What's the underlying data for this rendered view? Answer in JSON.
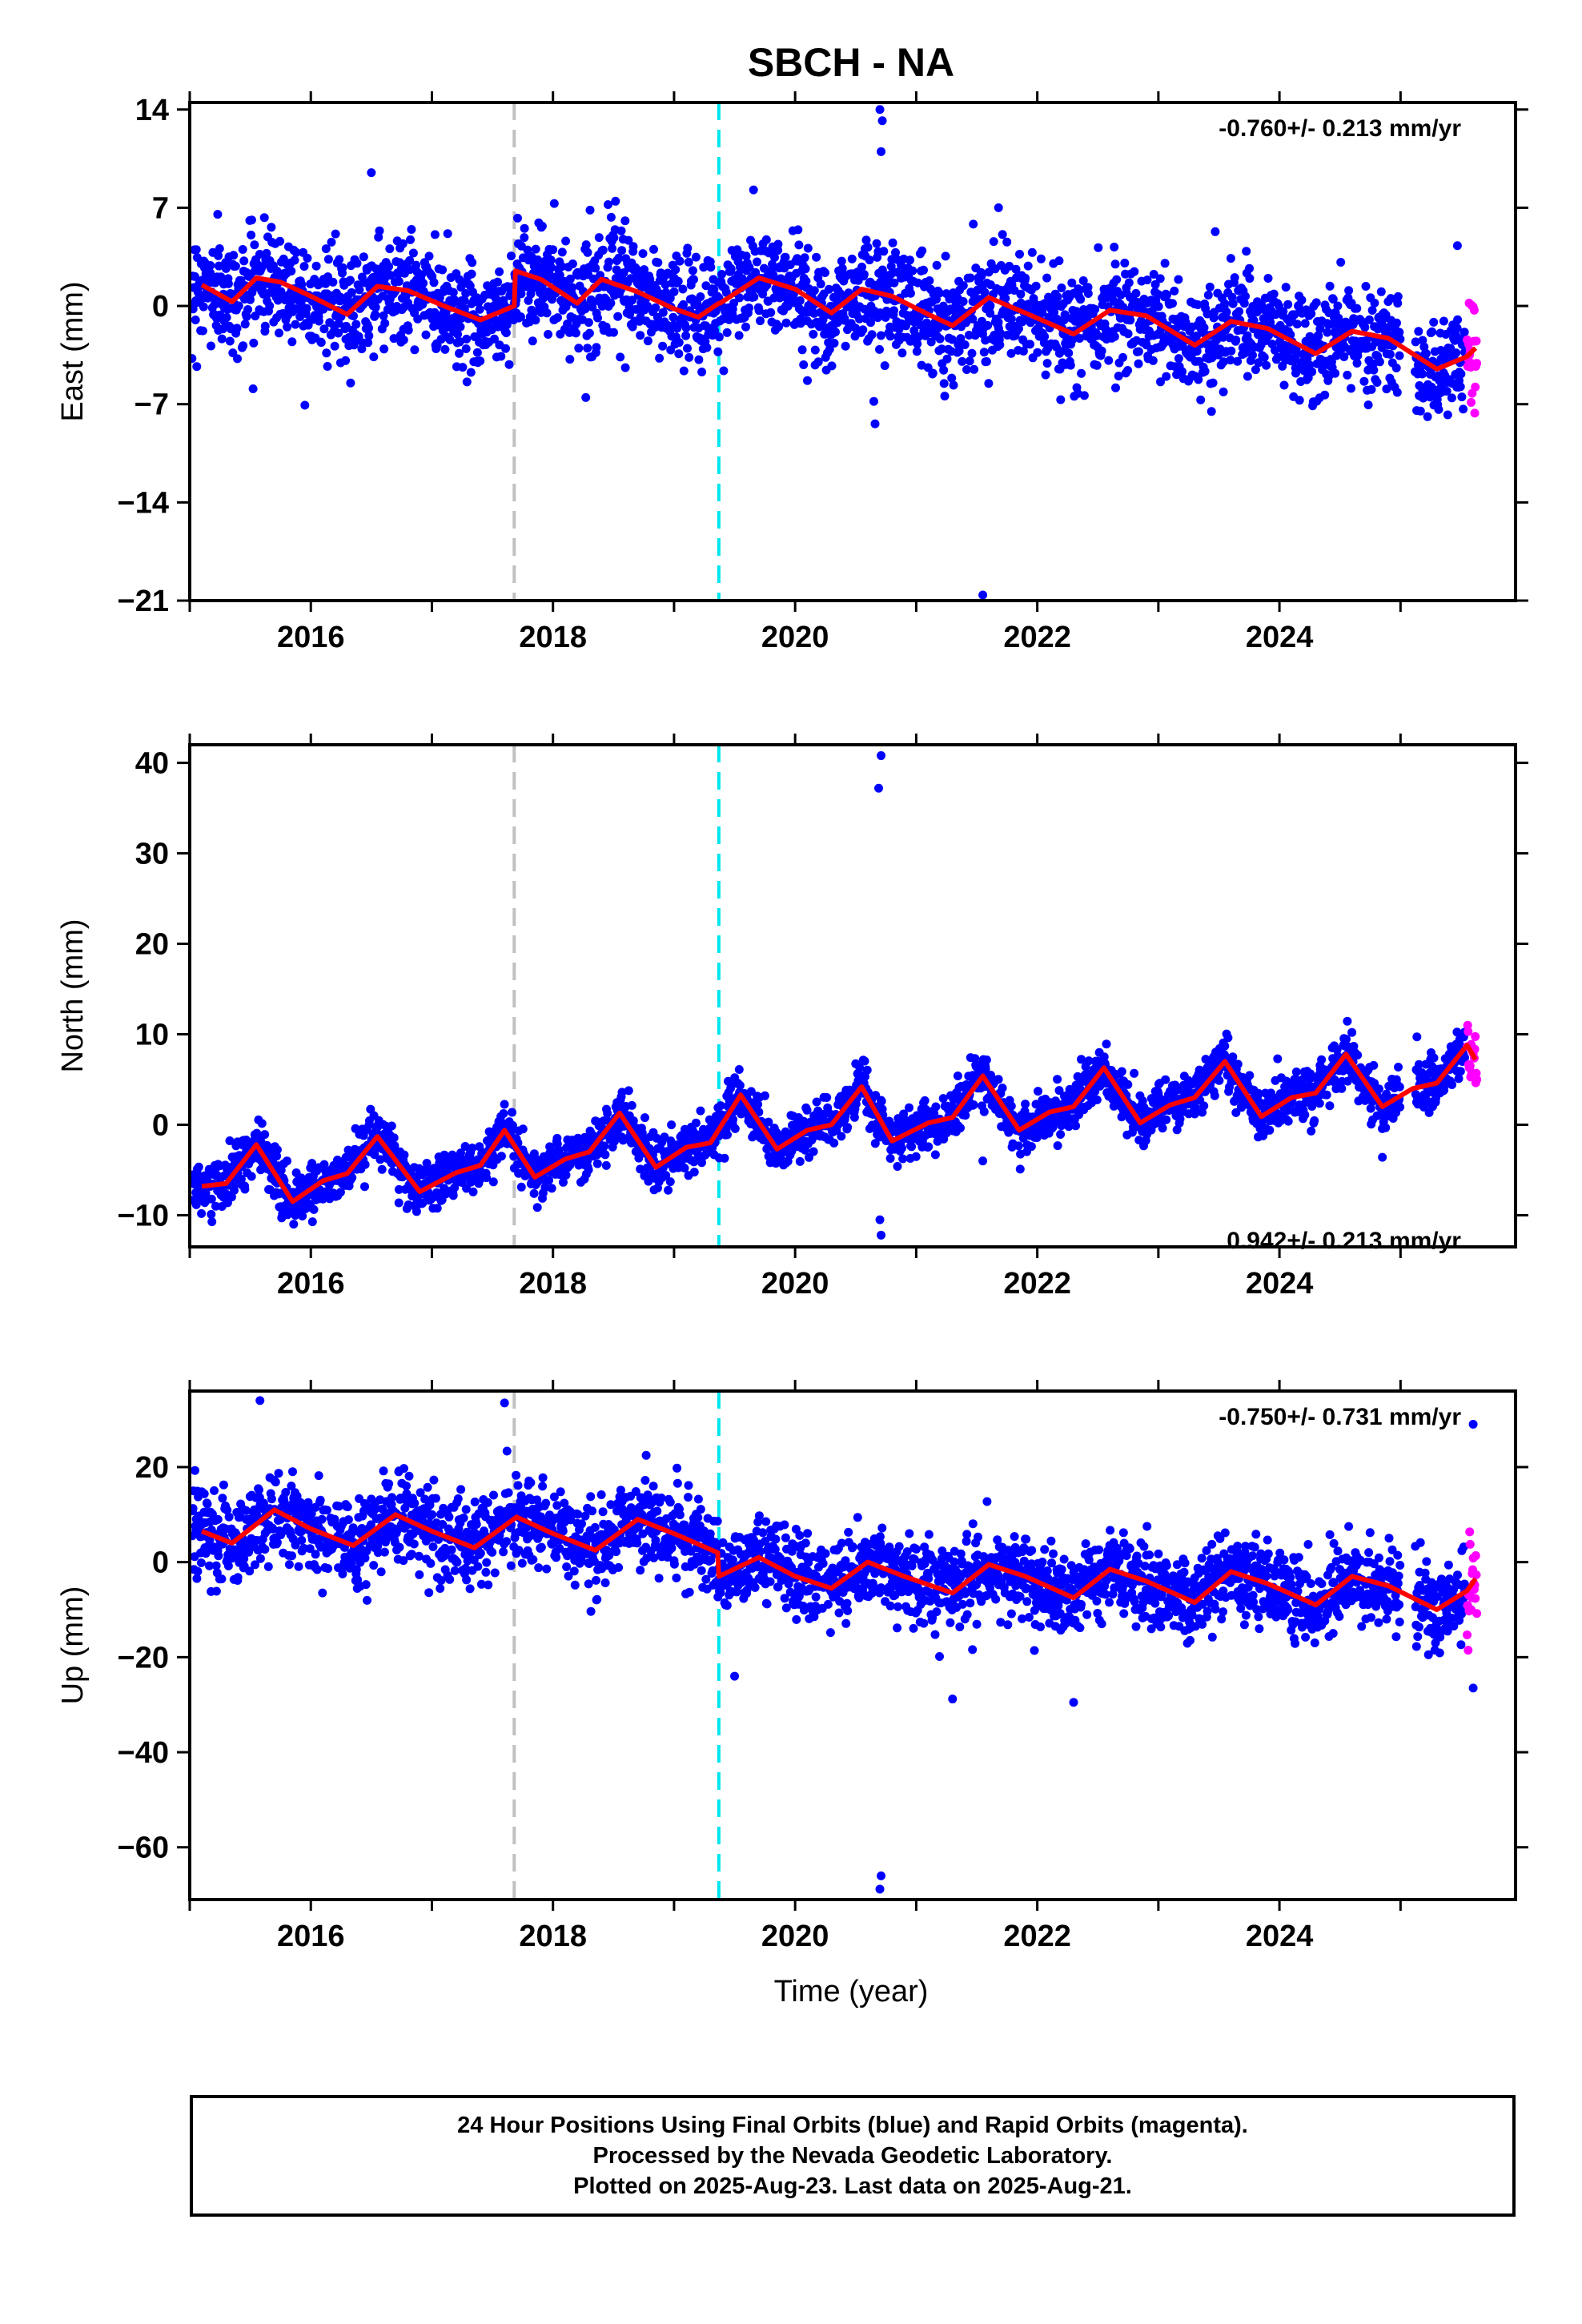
{
  "title": "SBCH - NA",
  "xlabel": "Time (year)",
  "footer": {
    "lines": [
      "24 Hour Positions Using Final Orbits (blue) and Rapid Orbits (magenta).",
      "Processed by the Nevada Geodetic Laboratory.",
      "Plotted on 2025-Aug-23. Last data on 2025-Aug-21."
    ]
  },
  "colors": {
    "final_orbits": "#0000ff",
    "rapid_orbits": "#ff00ff",
    "model": "#ff0000",
    "event_1": "#c0c0c0",
    "event_2": "#00e5ee"
  },
  "chart_data": [
    {
      "type": "scatter",
      "ylabel": "East (mm)",
      "rate": "-0.760+/- 0.213 mm/yr",
      "xlim": [
        2015.0,
        2025.95
      ],
      "ylim": [
        -21,
        14.5
      ],
      "yticks": [
        14,
        7,
        0,
        -7,
        -14,
        -21
      ],
      "xticks": [
        2016,
        2018,
        2020,
        2022,
        2024
      ],
      "vlines": [
        {
          "x": 2017.68,
          "style": "gray-dashed"
        },
        {
          "x": 2019.37,
          "style": "cyan-dashed"
        }
      ],
      "model": {
        "x": [
          2015.1,
          2015.35,
          2015.55,
          2015.75,
          2016.0,
          2016.3,
          2016.55,
          2016.8,
          2017.1,
          2017.4,
          2017.68,
          2017.69,
          2017.9,
          2018.2,
          2018.4,
          2018.7,
          2019.0,
          2019.2,
          2019.37,
          2019.38,
          2019.7,
          2020.0,
          2020.3,
          2020.55,
          2020.8,
          2021.1,
          2021.3,
          2021.6,
          2021.9,
          2022.3,
          2022.6,
          2022.9,
          2023.3,
          2023.6,
          2023.9,
          2024.3,
          2024.6,
          2024.9,
          2025.3,
          2025.55,
          2025.62
        ],
        "y": [
          1.5,
          0.3,
          2.0,
          1.7,
          0.7,
          -0.6,
          1.4,
          1.1,
          0.0,
          -1.0,
          0.0,
          2.5,
          1.9,
          0.2,
          1.9,
          1.0,
          -0.2,
          -0.8,
          0.2,
          0.2,
          2.0,
          1.2,
          -0.5,
          1.2,
          0.7,
          -0.6,
          -1.4,
          0.6,
          -0.5,
          -2.0,
          -0.3,
          -0.7,
          -2.8,
          -1.1,
          -1.6,
          -3.4,
          -1.8,
          -2.3,
          -4.5,
          -3.6,
          -3.0
        ]
      },
      "scatter_params": {
        "sigma": 1.9,
        "start": 2015.02,
        "end": 2025.53,
        "count": 2700,
        "gaps": [
          [
            2025.0,
            2025.12
          ]
        ],
        "rapid_start": 2025.55,
        "rapid_end": 2025.63,
        "rapid_count": 20
      },
      "outliers": [
        {
          "x": 2016.5,
          "y": 9.5
        },
        {
          "x": 2020.7,
          "y": 14.0
        },
        {
          "x": 2020.72,
          "y": 13.2
        },
        {
          "x": 2020.71,
          "y": 11.0
        },
        {
          "x": 2020.65,
          "y": -6.8
        },
        {
          "x": 2020.66,
          "y": -8.4
        },
        {
          "x": 2021.55,
          "y": -20.6
        },
        {
          "x": 2021.68,
          "y": 7.0
        },
        {
          "x": 2025.47,
          "y": 4.3
        }
      ]
    },
    {
      "type": "scatter",
      "ylabel": "North (mm)",
      "rate": "0.942+/- 0.213 mm/yr",
      "xlim": [
        2015.0,
        2025.95
      ],
      "ylim": [
        -13.5,
        42
      ],
      "yticks": [
        40,
        30,
        20,
        10,
        0,
        -10
      ],
      "xticks": [
        2016,
        2018,
        2020,
        2022,
        2024
      ],
      "vlines": [
        {
          "x": 2017.68,
          "style": "gray-dashed"
        },
        {
          "x": 2019.37,
          "style": "cyan-dashed"
        }
      ],
      "model": {
        "x": [
          2015.1,
          2015.3,
          2015.55,
          2015.85,
          2016.1,
          2016.3,
          2016.55,
          2016.9,
          2017.2,
          2017.4,
          2017.6,
          2017.85,
          2018.1,
          2018.3,
          2018.55,
          2018.85,
          2019.1,
          2019.3,
          2019.55,
          2019.85,
          2020.1,
          2020.3,
          2020.55,
          2020.8,
          2021.1,
          2021.3,
          2021.55,
          2021.85,
          2022.1,
          2022.3,
          2022.55,
          2022.85,
          2023.1,
          2023.3,
          2023.55,
          2023.85,
          2024.1,
          2024.3,
          2024.55,
          2024.85,
          2025.1,
          2025.3,
          2025.55,
          2025.62
        ],
        "y": [
          -6.8,
          -6.5,
          -2.2,
          -8.5,
          -6.2,
          -5.4,
          -1.3,
          -7.4,
          -5.3,
          -4.5,
          -0.6,
          -5.8,
          -3.8,
          -3.0,
          1.3,
          -4.7,
          -2.5,
          -2.0,
          3.3,
          -2.7,
          -0.6,
          0.0,
          4.2,
          -1.8,
          0.2,
          0.8,
          5.4,
          -0.6,
          1.4,
          2.0,
          6.3,
          0.2,
          2.2,
          3.0,
          7.0,
          0.9,
          3.0,
          3.5,
          7.8,
          2.0,
          4.0,
          4.6,
          8.8,
          7.2
        ]
      },
      "scatter_params": {
        "sigma": 1.4,
        "start": 2015.02,
        "end": 2025.53,
        "count": 2700,
        "gaps": [
          [
            2025.0,
            2025.12
          ]
        ],
        "rapid_start": 2025.55,
        "rapid_end": 2025.63,
        "rapid_count": 20
      },
      "outliers": [
        {
          "x": 2020.71,
          "y": 40.8
        },
        {
          "x": 2020.69,
          "y": 37.2
        },
        {
          "x": 2020.7,
          "y": -10.5
        },
        {
          "x": 2020.71,
          "y": -12.2
        },
        {
          "x": 2024.85,
          "y": -3.6
        },
        {
          "x": 2021.55,
          "y": -4.0
        }
      ]
    },
    {
      "type": "scatter",
      "ylabel": "Up (mm)",
      "rate": "-0.750+/- 0.731 mm/yr",
      "xlim": [
        2015.0,
        2025.95
      ],
      "ylim": [
        -71,
        36
      ],
      "yticks": [
        20,
        0,
        -20,
        -40,
        -60
      ],
      "xticks": [
        2016,
        2018,
        2020,
        2022,
        2024
      ],
      "vlines": [
        {
          "x": 2017.68,
          "style": "gray-dashed"
        },
        {
          "x": 2019.37,
          "style": "cyan-dashed"
        }
      ],
      "model": {
        "x": [
          2015.1,
          2015.35,
          2015.7,
          2016.0,
          2016.35,
          2016.7,
          2017.0,
          2017.35,
          2017.7,
          2018.0,
          2018.35,
          2018.7,
          2019.0,
          2019.36,
          2019.37,
          2019.7,
          2020.0,
          2020.3,
          2020.6,
          2020.9,
          2021.3,
          2021.6,
          2021.9,
          2022.3,
          2022.6,
          2022.9,
          2023.3,
          2023.6,
          2023.9,
          2024.3,
          2024.6,
          2024.9,
          2025.3,
          2025.55,
          2025.62
        ],
        "y": [
          6.5,
          4.0,
          11.0,
          7.0,
          3.5,
          10.0,
          6.5,
          3.0,
          9.5,
          6.0,
          2.5,
          9.0,
          6.0,
          2.0,
          -3.0,
          1.0,
          -3.0,
          -5.5,
          0.0,
          -3.0,
          -6.5,
          -0.5,
          -3.0,
          -7.5,
          -1.5,
          -4.0,
          -8.5,
          -2.0,
          -4.5,
          -9.0,
          -3.0,
          -5.0,
          -10.0,
          -6.0,
          -3.5
        ]
      },
      "scatter_params": {
        "sigma": 4.5,
        "start": 2015.02,
        "end": 2025.53,
        "count": 2700,
        "gaps": [
          [
            2025.0,
            2025.12
          ]
        ],
        "rapid_start": 2025.55,
        "rapid_end": 2025.63,
        "rapid_count": 20
      },
      "outliers": [
        {
          "x": 2015.58,
          "y": 34.0
        },
        {
          "x": 2017.6,
          "y": 33.5
        },
        {
          "x": 2020.71,
          "y": -66.0
        },
        {
          "x": 2020.7,
          "y": -68.8
        },
        {
          "x": 2021.3,
          "y": -28.8
        },
        {
          "x": 2022.3,
          "y": -29.5
        },
        {
          "x": 2019.5,
          "y": -24.0
        },
        {
          "x": 2025.6,
          "y": 29.0
        },
        {
          "x": 2025.6,
          "y": -26.5
        }
      ]
    }
  ]
}
